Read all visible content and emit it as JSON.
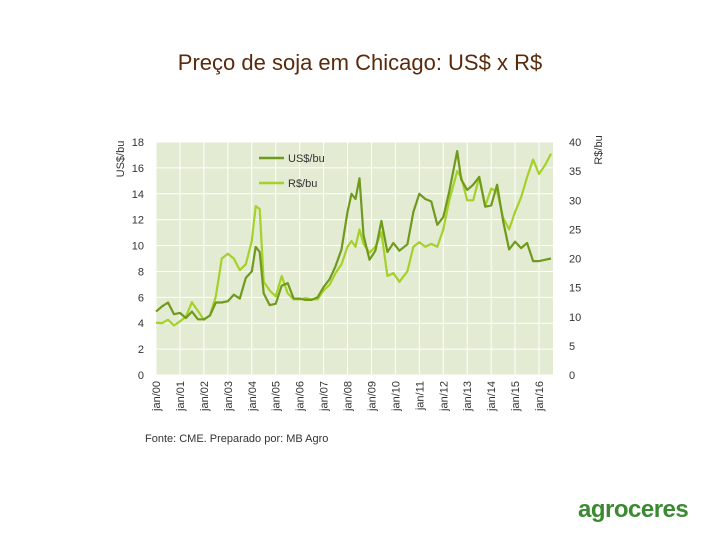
{
  "title": "Preço de soja em Chicago: US$ x R$",
  "source": "Fonte: CME. Preparado por: MB Agro",
  "brand": "agroceres",
  "colors": {
    "usd": "#6f9a1e",
    "brl": "#a5d12a",
    "plot_bg": "#e3ebd2",
    "brand": "#3b8a32"
  },
  "chart_data": {
    "type": "line",
    "title": "Preço de soja em Chicago: US$ x R$",
    "ylabel": "US$/bu",
    "y2label": "R$/bu",
    "ylim": [
      0,
      18
    ],
    "y2lim": [
      0,
      40
    ],
    "yticks": [
      "0",
      "2",
      "4",
      "6",
      "8",
      "10",
      "12",
      "14",
      "16",
      "18"
    ],
    "y2ticks": [
      "0",
      "5",
      "10",
      "15",
      "20",
      "25",
      "30",
      "35",
      "40"
    ],
    "xticks": [
      "jan/00",
      "jan/01",
      "jan/02",
      "jan/03",
      "jan/04",
      "jan/05",
      "jan/06",
      "jan/07",
      "jan/08",
      "jan/09",
      "jan/10",
      "jan/11",
      "jan/12",
      "jan/13",
      "jan/14",
      "jan/15",
      "jan/16"
    ],
    "grid": true,
    "legend": "top-center",
    "series": [
      {
        "name": "US$/bu",
        "axis": "left",
        "x": [
          "2000-01",
          "2000-04",
          "2000-07",
          "2000-10",
          "2001-01",
          "2001-04",
          "2001-07",
          "2001-10",
          "2002-01",
          "2002-04",
          "2002-07",
          "2002-10",
          "2003-01",
          "2003-04",
          "2003-07",
          "2003-10",
          "2004-01",
          "2004-03",
          "2004-05",
          "2004-07",
          "2004-10",
          "2005-01",
          "2005-04",
          "2005-07",
          "2005-10",
          "2006-01",
          "2006-04",
          "2006-07",
          "2006-10",
          "2007-01",
          "2007-04",
          "2007-07",
          "2007-10",
          "2008-01",
          "2008-03",
          "2008-05",
          "2008-07",
          "2008-09",
          "2008-12",
          "2009-03",
          "2009-06",
          "2009-09",
          "2009-12",
          "2010-03",
          "2010-07",
          "2010-10",
          "2011-01",
          "2011-04",
          "2011-07",
          "2011-10",
          "2012-01",
          "2012-04",
          "2012-08",
          "2012-10",
          "2013-01",
          "2013-04",
          "2013-07",
          "2013-10",
          "2014-01",
          "2014-04",
          "2014-07",
          "2014-10",
          "2015-01",
          "2015-04",
          "2015-07",
          "2015-10",
          "2016-01",
          "2016-04",
          "2016-07"
        ],
        "values": [
          4.9,
          5.3,
          5.6,
          4.7,
          4.8,
          4.4,
          4.9,
          4.3,
          4.3,
          4.6,
          5.6,
          5.6,
          5.7,
          6.2,
          5.9,
          7.5,
          8.0,
          9.9,
          9.5,
          6.3,
          5.4,
          5.5,
          6.9,
          7.1,
          5.9,
          5.9,
          5.8,
          5.8,
          6.0,
          6.8,
          7.4,
          8.4,
          9.7,
          12.6,
          14.0,
          13.6,
          15.2,
          10.8,
          8.9,
          9.6,
          11.9,
          9.5,
          10.2,
          9.6,
          10.1,
          12.6,
          14.0,
          13.6,
          13.4,
          11.6,
          12.2,
          14.2,
          17.3,
          15.1,
          14.3,
          14.7,
          15.3,
          13.0,
          13.1,
          14.7,
          11.9,
          9.7,
          10.3,
          9.8,
          10.2,
          8.8,
          8.8,
          8.9,
          9.0
        ]
      },
      {
        "name": "R$/bu",
        "axis": "right",
        "x": [
          "2000-01",
          "2000-04",
          "2000-07",
          "2000-10",
          "2001-01",
          "2001-04",
          "2001-07",
          "2001-10",
          "2002-01",
          "2002-04",
          "2002-07",
          "2002-10",
          "2003-01",
          "2003-04",
          "2003-07",
          "2003-10",
          "2004-01",
          "2004-03",
          "2004-05",
          "2004-07",
          "2004-10",
          "2005-01",
          "2005-04",
          "2005-07",
          "2005-10",
          "2006-01",
          "2006-04",
          "2006-07",
          "2006-10",
          "2007-01",
          "2007-04",
          "2007-07",
          "2007-10",
          "2008-01",
          "2008-03",
          "2008-05",
          "2008-07",
          "2008-09",
          "2008-12",
          "2009-03",
          "2009-06",
          "2009-09",
          "2009-12",
          "2010-03",
          "2010-07",
          "2010-10",
          "2011-01",
          "2011-04",
          "2011-07",
          "2011-10",
          "2012-01",
          "2012-04",
          "2012-08",
          "2012-10",
          "2013-01",
          "2013-04",
          "2013-07",
          "2013-10",
          "2014-01",
          "2014-04",
          "2014-07",
          "2014-10",
          "2015-01",
          "2015-04",
          "2015-07",
          "2015-10",
          "2016-01",
          "2016-04",
          "2016-07"
        ],
        "values": [
          9.0,
          8.9,
          9.5,
          8.5,
          9.2,
          10.0,
          12.5,
          11.0,
          9.5,
          10.2,
          13.5,
          20.0,
          20.8,
          20.0,
          18.0,
          19.0,
          23.0,
          29.0,
          28.5,
          16.0,
          14.5,
          13.5,
          17.0,
          14.0,
          13.0,
          13.0,
          13.2,
          13.0,
          13.0,
          14.5,
          15.5,
          17.5,
          19.0,
          22.0,
          23.0,
          22.0,
          25.0,
          22.5,
          21.0,
          22.0,
          24.5,
          17.0,
          17.5,
          16.0,
          17.8,
          22.0,
          22.8,
          22.0,
          22.5,
          22.0,
          25.0,
          30.0,
          35.0,
          34.0,
          30.0,
          30.0,
          34.0,
          29.0,
          32.0,
          31.5,
          27.0,
          25.0,
          28.0,
          30.5,
          34.0,
          37.0,
          34.5,
          36.0,
          38.0
        ]
      }
    ]
  }
}
